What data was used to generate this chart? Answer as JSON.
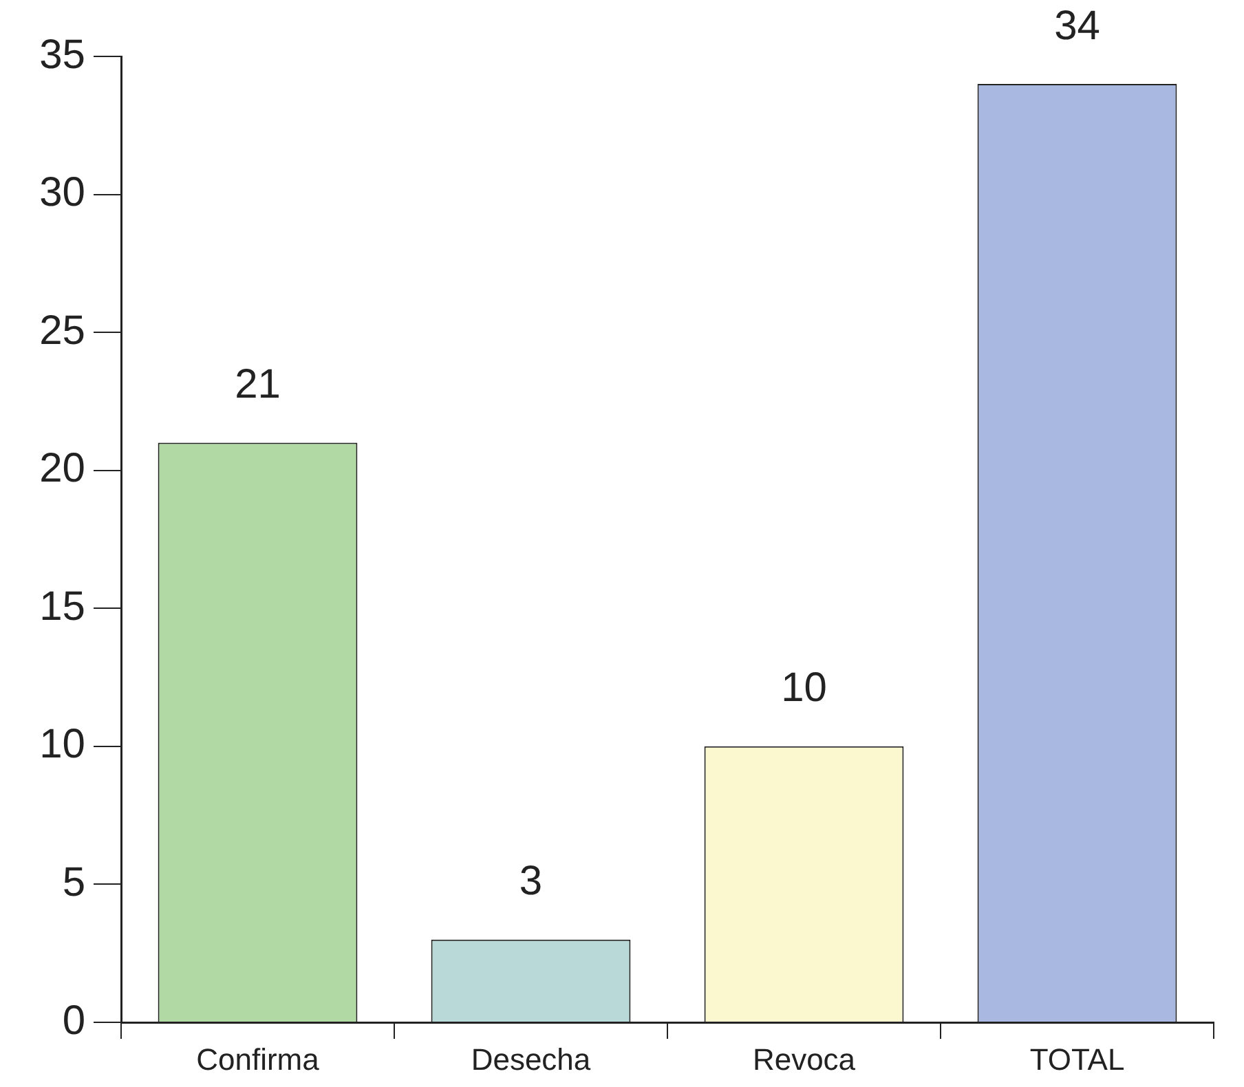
{
  "chart_data": {
    "type": "bar",
    "categories": [
      "Confirma",
      "Desecha",
      "Revoca",
      "TOTAL"
    ],
    "values": [
      21,
      3,
      10,
      34
    ],
    "colors": [
      "#b0d9a3",
      "#b8d9d8",
      "#fbf8d0",
      "#a9b8e1"
    ],
    "ylim": [
      0,
      35
    ],
    "yticks": [
      0,
      5,
      10,
      15,
      20,
      25,
      30,
      35
    ],
    "grid": false,
    "data_labels": true
  }
}
